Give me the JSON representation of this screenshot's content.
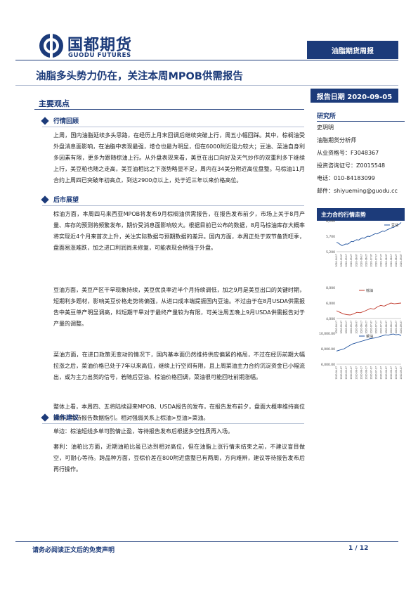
{
  "header": {
    "logo_cn": "国都期货",
    "logo_en": "GUODU FUTURES",
    "report_tag": "油脂期货周报"
  },
  "title": "油脂多头势力仍在，关注本周MPOB供需报告",
  "report_date": "报告日期 2020-09-05",
  "main_points_label": "主要观点",
  "sections": {
    "review": {
      "heading": "行情回顾",
      "text": "上周，国内油脂延续多头思路，在经历上月末回调后继续突破上行，周五小幅回踩。其中，棕榈油受外盘消息面影响，在油脂中表现最强，增仓也最为明显，但在6000附近阻力较大；豆油、菜油自身利多因素有限，更多为跟随棕油上行。从外盘表现来看，美豆在出口向好及天气炒作的双重利多下继续上行，美豆粕也随之走高，美豆油相比之下涨势略显不足，周内在34美分附近高位盘整。马棕油11月合约上周四已突破年初高点，到达2900点以上，处于近三年以来价格高位。"
    },
    "outlook": {
      "heading": "后市展望",
      "p1": "棕油方面，本周四马来西亚MPOB将发布9月棕榈油供需报告，在报告发布前夕，市场上关于8月产量、库存的预测将频繁发布，期价受消息面影响较大。根据目前已公布的数据，8月马棕油库存大概率将实现近4个月来首次上升，关注实际数据与预期数据的差异。国内方面，本周正处于双节备货旺季，盘面易涨难跌，加之进口利润尚未修复，可能表现会稍强于外盘。",
      "p2": "豆油方面，美豆产区干旱现象持续，美豆优良率近半个月持续调低，加之9月是美豆出口的关键时期，短期利多题材，影响美豆价格走势将偏强，从进口成本端提振国内豆油。不过由于在8月USDA供需报告中美豆单产明显调高，料短期干旱对于最终产量较为有限，可关注周五晚上9月USDA供需报告对于产量的调整。",
      "p3": "菜油方面，在进口政策无变动的情况下，国内基本面仍然维持供应偏紧的格局，不过在经历前期大幅拉涨之后，菜油价格已处于7年以来高位，继续上行空间有限，且上周菜油主力合约沉淀资金已小幅流出，或为主力出货的信号，若随后豆油、棕油价格回调，菜油很可能回吐前期涨幅。",
      "p4": "整体上看，本周四、五将陆续迎来MPOB、USDA报告的发布，在报告发布前夕，盘面大概率维持高位震荡，等待报告数据指引。相对强弱关系上棕油>豆油>菜油。"
    },
    "advice": {
      "heading": "操作建议",
      "p1": "单边：棕油短线多单可酌情止盈，等待报告发布后根据多空性质再入场。",
      "p2": "套利：油粕比方面，近期油粕比虽已达到相对高位，但在油脂上涨行情未结束之前，不建议盲目做空，可耐心等待。跨品种方面，豆棕价差在800附近盘整已有两周，方向难辨，建议等待报告发布后再行操作。"
    }
  },
  "sidebar": {
    "title": "研究所",
    "lines": [
      "史玥明",
      "油脂期货分析师",
      "从业资格号：F3048367",
      "投资咨询证号：Z0015548",
      "电话：010-84183099",
      "邮件：shiyueming@guodu.cc"
    ],
    "chart_heading": "主力合约行情走势"
  },
  "chart_data": [
    {
      "type": "line",
      "series": [
        {
          "name": "豆油",
          "values": [
            5750,
            5700,
            5620,
            5550,
            5600,
            5650,
            5640,
            5700,
            5800,
            5780,
            5850,
            5900,
            5880,
            5950,
            6000,
            5980,
            6050,
            6100,
            6080,
            6150,
            6200,
            6250,
            6230,
            6300,
            6350,
            6400,
            6380,
            6450,
            6500,
            6550,
            6600,
            6620,
            6700,
            6750,
            6800,
            6900
          ]
        }
      ],
      "yticks": [
        "6,200",
        "5,700",
        "5,200"
      ],
      "ylim": [
        5200,
        7000
      ],
      "xticks": [
        "2020-04-17",
        "2020-05-07",
        "2020-05-17",
        "2020-05-27",
        "2020-06-07",
        "2020-06-17",
        "2020-06-27",
        "2020-07-07",
        "2020-07-17",
        "2020-07-27",
        "2020-08-07",
        "2020-08-17",
        "2020-08-27",
        "2020-09-07"
      ]
    },
    {
      "type": "line",
      "series": [
        {
          "name": "棕油",
          "values": [
            5000,
            4800,
            4600,
            4500,
            4450,
            4600,
            4800,
            4750,
            4900,
            5100,
            5300,
            5200,
            5500,
            5700,
            5600,
            5800,
            6000,
            5900,
            5950,
            6000
          ]
        }
      ],
      "yticks": [
        "8,000",
        "6,000",
        "4,000"
      ],
      "ylim": [
        4000,
        8000
      ],
      "xticks": [
        "2020-04-17",
        "2020-05-07",
        "2020-05-17",
        "2020-05-27",
        "2020-06-07",
        "2020-06-17",
        "2020-06-27",
        "2020-07-07",
        "2020-07-17",
        "2020-07-27",
        "2020-08-07",
        "2020-08-17",
        "2020-08-27",
        "2020-09-07"
      ]
    },
    {
      "type": "line",
      "series": [
        {
          "name": "菜油",
          "values": [
            7700,
            7800,
            7900,
            8000,
            8200,
            8400,
            8600,
            8700,
            8800,
            8900,
            9000,
            9100,
            9200,
            9300,
            9350,
            9400,
            9500,
            9600,
            9700,
            9800,
            9750,
            9850,
            9900,
            9800,
            9850,
            9700
          ]
        }
      ],
      "yticks": [
        "10,000.00",
        "8,000.00",
        "6,000.00"
      ],
      "ylim": [
        6000,
        10000
      ],
      "xticks": [
        "2020-04-17",
        "2020-05-07",
        "2020-05-17",
        "2020-05-27",
        "2020-06-07",
        "2020-06-17",
        "2020-06-27",
        "2020-07-07",
        "2020-07-17",
        "2020-07-27",
        "2020-08-07",
        "2020-08-17",
        "2020-08-27",
        "2020-09-07"
      ]
    }
  ],
  "footer": {
    "disclaimer": "请务必阅读正文后的免责声明",
    "page": "1 / 12"
  }
}
